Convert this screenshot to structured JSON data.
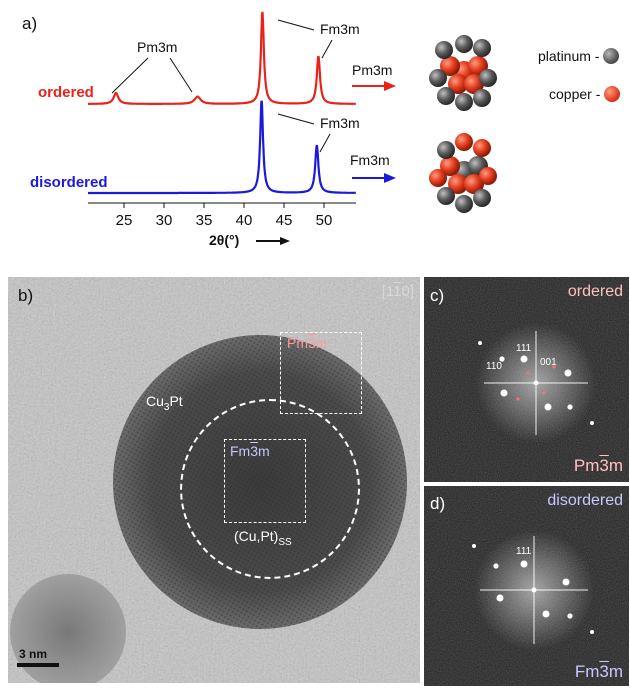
{
  "panel_a": {
    "letter": "a)",
    "xrd": {
      "ordered_label": "ordered",
      "disordered_label": "disordered",
      "pm3m_annotation": "Pm3m",
      "fm3m_annotation_top": "Fm3m",
      "fm3m_annotation_bottom": "Fm3m",
      "arrow_label_ordered": "Pm3m",
      "arrow_label_disordered": "Fm3m",
      "xlabel": "2θ(°)",
      "colors": {
        "ordered": "#e8231a",
        "disordered": "#1a1adf"
      }
    },
    "legend": {
      "platinum": "platinum -",
      "copper": "copper -"
    }
  },
  "chart_data": {
    "type": "line",
    "xlabel": "2θ(°)",
    "ylabel": "",
    "xlim": [
      20.5,
      54
    ],
    "x_ticks": [
      25,
      30,
      35,
      40,
      45,
      50
    ],
    "series": [
      {
        "name": "ordered",
        "color": "#e8231a",
        "peaks": [
          {
            "x": 24.0,
            "height": 0.12,
            "width": 0.35
          },
          {
            "x": 34.2,
            "height": 0.08,
            "width": 0.45
          },
          {
            "x": 42.3,
            "height": 1.0,
            "width": 0.22
          },
          {
            "x": 49.3,
            "height": 0.52,
            "width": 0.24
          }
        ]
      },
      {
        "name": "disordered",
        "color": "#1a1adf",
        "peaks": [
          {
            "x": 42.2,
            "height": 1.0,
            "width": 0.22
          },
          {
            "x": 49.1,
            "height": 0.52,
            "width": 0.24
          }
        ]
      }
    ]
  },
  "panel_b": {
    "letter": "b)",
    "zone_axis": "[1",
    "zone_axis_bar": "1",
    "zone_axis_end": "0]",
    "cu3pt_label": "Cu",
    "cu3pt_sub": "3",
    "cu3pt_end": "Pt",
    "pm3m_label": "Pm",
    "pm3m_bar": "3",
    "pm3m_end": "m",
    "fm3m_label": "Fm",
    "fm3m_bar": "3",
    "fm3m_end": "m",
    "ss_label": "(Cu,Pt)",
    "ss_sub": "SS",
    "scale_bar": "3 nm"
  },
  "panel_c": {
    "letter": "c)",
    "title": "ordered",
    "idx_111": "111",
    "idx_110": "110",
    "idx_001": "001",
    "space_group": "Pm",
    "space_group_bar": "3",
    "space_group_end": "m"
  },
  "panel_d": {
    "letter": "d)",
    "title": "disordered",
    "idx_111": "111",
    "space_group": "Fm",
    "space_group_bar": "3",
    "space_group_end": "m"
  }
}
